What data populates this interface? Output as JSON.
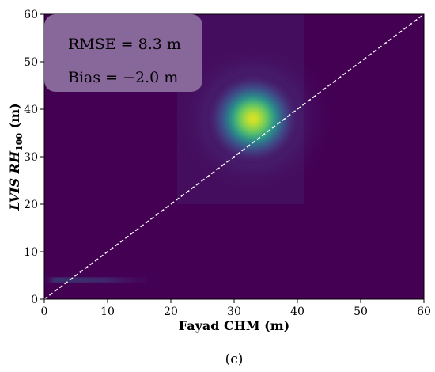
{
  "chart_data": {
    "type": "heatmap",
    "title": "",
    "xlabel": "Fayad CHM (m)",
    "ylabel": {
      "main": "LVIS RH",
      "subscript": "100",
      "unit": " (m)"
    },
    "xlim": [
      0,
      60
    ],
    "ylim": [
      0,
      60
    ],
    "x_ticks": [
      "0",
      "10",
      "20",
      "30",
      "40",
      "50",
      "60"
    ],
    "y_ticks": [
      "0",
      "10",
      "20",
      "30",
      "40",
      "50",
      "60"
    ],
    "colormap": "viridis",
    "background_color": "#440154",
    "density_peak": {
      "x": 33,
      "y": 38
    },
    "secondary_density": {
      "x_range": [
        1,
        4
      ],
      "y": 4
    },
    "reference_line": {
      "type": "1:1",
      "from": [
        0,
        0
      ],
      "to": [
        60,
        60
      ],
      "style": "dashed",
      "color": "#ffffff"
    },
    "annotations": {
      "rmse": "RMSE = 8.3 m",
      "bias": "Bias = −2.0 m"
    },
    "panel_label": "(c)",
    "grid": false
  }
}
